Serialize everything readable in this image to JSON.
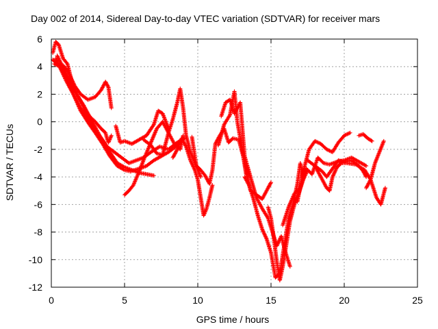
{
  "chart_data": {
    "type": "scatter",
    "title": "Day 002 of 2014, Sidereal Day-to-day VTEC variation (SDTVAR) for receiver mars",
    "xlabel": "GPS time / hours",
    "ylabel": "SDTVAR / TECUs",
    "xlim": [
      0,
      25
    ],
    "ylim": [
      -12,
      6
    ],
    "xticks": [
      "0",
      "5",
      "10",
      "15",
      "20",
      "25"
    ],
    "yticks": [
      "6",
      "4",
      "2",
      "0",
      "-2",
      "-4",
      "-6",
      "-8",
      "-10",
      "-12"
    ],
    "grid": true,
    "legend": "none",
    "marker": "plus",
    "color": "#ff0000",
    "series": [
      {
        "x": [
          0.1,
          0.3,
          0.5,
          0.8,
          1.1,
          1.5,
          2.0,
          2.5,
          3.0,
          3.4,
          3.7,
          3.8,
          3.9,
          4.1
        ],
        "y": [
          5.0,
          5.8,
          5.6,
          4.6,
          4.2,
          2.5,
          1.5,
          0.5,
          0.0,
          -0.5,
          -0.8,
          -1.2,
          -1.5,
          -1.0
        ]
      },
      {
        "x": [
          0.1,
          0.4,
          0.8,
          1.2,
          1.6,
          2.0,
          2.5,
          3.0,
          3.4,
          3.7,
          3.9,
          4.1
        ],
        "y": [
          4.5,
          4.2,
          4.1,
          3.5,
          2.6,
          2.0,
          1.6,
          1.8,
          2.3,
          2.9,
          2.5,
          1.0
        ]
      },
      {
        "x": [
          0.2,
          0.6,
          1.0,
          1.5,
          2.0,
          2.6,
          3.0,
          3.5,
          4.0,
          4.5,
          5.0,
          5.4,
          6.0,
          6.5,
          7.0,
          7.5,
          8.0,
          8.5,
          9.0
        ],
        "y": [
          4.2,
          4.0,
          3.2,
          2.0,
          0.8,
          -0.2,
          -0.8,
          -1.6,
          -2.5,
          -3.2,
          -3.5,
          -3.6,
          -3.4,
          -3.2,
          -2.8,
          -2.5,
          -2.2,
          -1.8,
          -1.2
        ]
      },
      {
        "x": [
          0.3,
          1.0,
          1.5,
          2.0,
          2.5,
          3.0,
          3.6,
          4.0,
          4.5,
          5.0,
          5.5,
          6.0,
          6.5,
          7.0
        ],
        "y": [
          4.6,
          3.0,
          2.0,
          1.0,
          0.3,
          -0.6,
          -1.5,
          -2.2,
          -3.0,
          -3.3,
          -3.5,
          -3.7,
          -3.8,
          -3.9
        ]
      },
      {
        "x": [
          0.4,
          1.0,
          1.6,
          2.2,
          2.8,
          3.3,
          3.8,
          4.3,
          4.8,
          5.3,
          5.8,
          6.3,
          6.8,
          7.4,
          8.0,
          8.6,
          9.1
        ],
        "y": [
          4.8,
          3.5,
          2.2,
          1.2,
          0.0,
          -1.0,
          -1.8,
          -2.2,
          -2.6,
          -3.0,
          -2.8,
          -2.6,
          -2.2,
          -1.8,
          -2.0,
          -1.5,
          -1.2
        ]
      },
      {
        "x": [
          5.0,
          5.3,
          5.6,
          6.0,
          6.4,
          6.8,
          7.2,
          7.6,
          8.0,
          8.4,
          8.8,
          9.0
        ],
        "y": [
          -5.3,
          -5.0,
          -4.6,
          -3.6,
          -2.5,
          -1.5,
          -0.5,
          0.0,
          -0.8,
          -1.6,
          -2.0,
          -1.0
        ]
      },
      {
        "x": [
          4.4,
          4.7,
          5.0,
          5.5,
          6.0,
          6.5,
          7.0,
          7.3,
          7.6,
          8.0
        ],
        "y": [
          -0.3,
          -1.5,
          -1.4,
          -1.6,
          -1.3,
          -1.0,
          -0.2,
          0.8,
          0.6,
          -0.5
        ]
      },
      {
        "x": [
          6.3,
          6.8,
          7.2,
          7.6,
          8.0,
          8.3,
          8.6,
          8.8,
          9.0,
          9.2,
          9.5,
          9.9,
          10.2
        ],
        "y": [
          -1.3,
          -1.7,
          -2.3,
          -2.4,
          -0.8,
          0.2,
          1.4,
          2.4,
          1.0,
          -1.0,
          -2.2,
          -3.2,
          -4.0
        ]
      },
      {
        "x": [
          8.3,
          8.6,
          8.9,
          9.2,
          9.5,
          9.8,
          10.0,
          10.2,
          10.4,
          10.6,
          10.8,
          11.0
        ],
        "y": [
          -2.6,
          -2.0,
          -1.2,
          -1.8,
          -2.8,
          -3.5,
          -4.2,
          -5.5,
          -6.8,
          -6.3,
          -5.5,
          -4.6
        ]
      },
      {
        "x": [
          9.6,
          9.9,
          10.2,
          10.5,
          10.8,
          11.0,
          11.2,
          11.5,
          11.8,
          12.1,
          12.4,
          12.8,
          13.1,
          13.3
        ],
        "y": [
          -1.1,
          -3.2,
          -3.5,
          -3.9,
          -4.5,
          -3.5,
          -1.6,
          -1.0,
          -0.5,
          -1.5,
          -1.2,
          -1.3,
          -2.5,
          -3.8
        ]
      },
      {
        "x": [
          11.4,
          11.8,
          12.2,
          12.5,
          12.7,
          13.0,
          13.3,
          13.6,
          14.0,
          14.4,
          14.8,
          15.0
        ],
        "y": [
          -1.7,
          -0.2,
          0.5,
          2.2,
          0.0,
          -1.8,
          -3.5,
          -5.0,
          -5.3,
          -5.6,
          -4.8,
          -4.4
        ]
      },
      {
        "x": [
          11.6,
          11.9,
          12.2,
          12.5,
          12.9,
          13.2,
          13.6,
          14.0,
          14.4,
          14.8,
          15.1,
          15.4,
          15.7,
          16.0,
          16.3
        ],
        "y": [
          0.4,
          1.4,
          1.6,
          0.6,
          1.4,
          -2.5,
          -4.0,
          -5.5,
          -6.3,
          -7.0,
          -8.0,
          -9.0,
          -8.3,
          -9.5,
          -10.5
        ]
      },
      {
        "x": [
          13.2,
          13.5,
          13.8,
          14.1,
          14.4,
          14.7,
          15.0,
          15.3,
          15.6,
          15.9,
          16.2,
          16.5,
          16.8,
          17.0,
          17.2
        ],
        "y": [
          -4.0,
          -4.6,
          -5.6,
          -6.8,
          -7.8,
          -8.5,
          -9.5,
          -11.3,
          -11.0,
          -9.0,
          -7.0,
          -6.0,
          -4.5,
          -3.0,
          -4.2
        ]
      },
      {
        "x": [
          14.8,
          15.0,
          15.2,
          15.4,
          15.6,
          15.8,
          16.0,
          16.3,
          16.6,
          16.9,
          17.2,
          17.5
        ],
        "y": [
          -6.2,
          -7.0,
          -8.5,
          -10.2,
          -11.5,
          -10.5,
          -9.2,
          -7.2,
          -6.0,
          -5.2,
          -4.2,
          -3.5
        ]
      },
      {
        "x": [
          15.8,
          16.2,
          16.6,
          17.0,
          17.4,
          17.8,
          18.2,
          18.6,
          19.0,
          19.5,
          20.0,
          20.5,
          21.0,
          21.5
        ],
        "y": [
          -7.5,
          -6.2,
          -5.2,
          -4.8,
          -3.4,
          -3.8,
          -2.6,
          -3.0,
          -3.1,
          -2.9,
          -2.8,
          -2.6,
          -2.9,
          -3.2
        ]
      },
      {
        "x": [
          16.8,
          17.2,
          17.6,
          18.0,
          18.4,
          18.8,
          19.2,
          19.6,
          20.0,
          20.4
        ],
        "y": [
          -5.8,
          -3.6,
          -2.0,
          -1.4,
          -1.6,
          -2.0,
          -2.2,
          -1.5,
          -1.0,
          -0.8
        ]
      },
      {
        "x": [
          17.5,
          18.0,
          18.5,
          18.8,
          19.2,
          19.6,
          20.0,
          20.5,
          21.0,
          21.3,
          21.5
        ],
        "y": [
          -2.8,
          -3.2,
          -3.6,
          -4.0,
          -3.4,
          -2.8,
          -2.9,
          -2.8,
          -3.2,
          -3.6,
          -4.0
        ]
      },
      {
        "x": [
          18.0,
          18.4,
          18.8,
          19.0,
          19.2,
          19.5,
          19.8,
          20.2,
          20.8,
          21.4,
          21.8,
          22.2,
          22.5,
          22.8
        ],
        "y": [
          -3.2,
          -4.0,
          -4.8,
          -5.0,
          -4.0,
          -3.3,
          -3.0,
          -3.0,
          -3.1,
          -3.5,
          -4.2,
          -5.5,
          -6.0,
          -4.8
        ]
      },
      {
        "x": [
          21.0,
          21.3,
          21.6,
          21.9
        ],
        "y": [
          -1.0,
          -0.9,
          -1.2,
          -1.4
        ]
      },
      {
        "x": [
          21.5,
          21.8,
          22.1,
          22.4,
          22.7
        ],
        "y": [
          -4.8,
          -4.2,
          -3.0,
          -2.2,
          -1.4
        ]
      }
    ]
  }
}
